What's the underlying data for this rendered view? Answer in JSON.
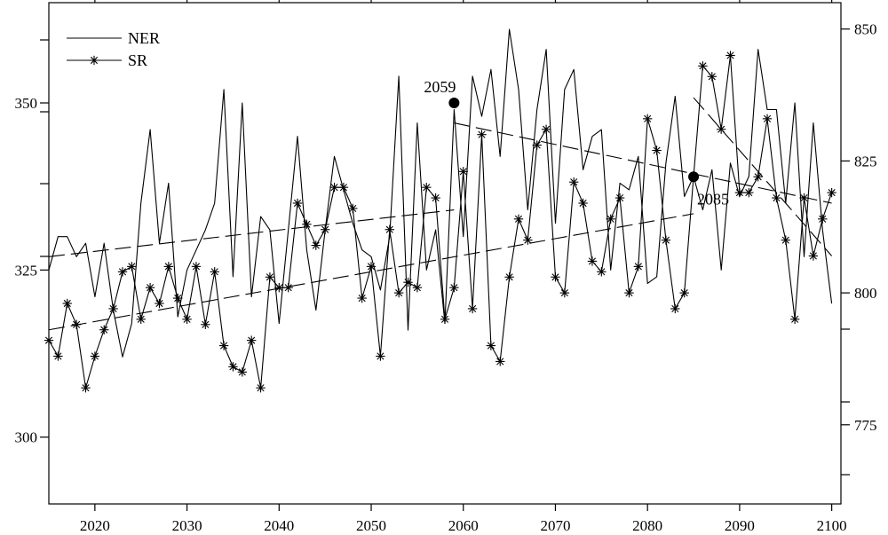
{
  "chart_data": {
    "type": "line",
    "x_range": [
      2015,
      2101
    ],
    "x_ticks": [
      2020,
      2030,
      2040,
      2050,
      2060,
      2070,
      2080,
      2090,
      2100
    ],
    "left_axis": {
      "range": [
        290,
        365
      ],
      "ticks": [
        300,
        325,
        350
      ]
    },
    "right_axis": {
      "range": [
        760,
        855
      ],
      "ticks": [
        775,
        800,
        825,
        850
      ]
    },
    "legend": {
      "placement": "top-left",
      "entries": [
        "NER",
        "SR"
      ]
    },
    "series": [
      {
        "name": "NER",
        "axis": "left",
        "marker": "none",
        "x": [
          2015,
          2016,
          2017,
          2018,
          2019,
          2020,
          2021,
          2022,
          2023,
          2024,
          2025,
          2026,
          2027,
          2028,
          2029,
          2030,
          2031,
          2032,
          2033,
          2034,
          2035,
          2036,
          2037,
          2038,
          2039,
          2040,
          2041,
          2042,
          2043,
          2044,
          2045,
          2046,
          2047,
          2048,
          2049,
          2050,
          2051,
          2052,
          2053,
          2054,
          2055,
          2056,
          2057,
          2058,
          2059,
          2060,
          2061,
          2062,
          2063,
          2064,
          2065,
          2066,
          2067,
          2068,
          2069,
          2070,
          2071,
          2072,
          2073,
          2074,
          2075,
          2076,
          2077,
          2078,
          2079,
          2080,
          2081,
          2082,
          2083,
          2084,
          2085,
          2086,
          2087,
          2088,
          2089,
          2090,
          2091,
          2092,
          2093,
          2094,
          2095,
          2096,
          2097,
          2098,
          2099,
          2100
        ],
        "y": [
          325,
          330,
          330,
          327,
          329,
          321,
          329,
          319,
          312,
          317,
          335,
          346,
          329,
          338,
          318,
          325,
          328,
          331,
          335,
          352,
          324,
          350,
          321,
          333,
          331,
          317,
          331,
          345,
          328,
          319,
          331,
          342,
          337,
          332,
          328,
          327,
          322,
          330,
          354,
          316,
          347,
          325,
          331,
          317,
          349,
          330,
          354,
          348,
          355,
          342,
          361,
          352,
          334,
          349,
          358,
          332,
          352,
          355,
          340,
          345,
          346,
          325,
          338,
          337,
          342,
          323,
          324,
          341,
          351,
          336,
          339,
          334,
          340,
          325,
          341,
          336,
          339,
          358,
          349,
          349,
          335,
          350,
          327,
          347,
          331,
          320
        ]
      },
      {
        "name": "SR",
        "axis": "right",
        "marker": "asterisk",
        "x": [
          2015,
          2016,
          2017,
          2018,
          2019,
          2020,
          2021,
          2022,
          2023,
          2024,
          2025,
          2026,
          2027,
          2028,
          2029,
          2030,
          2031,
          2032,
          2033,
          2034,
          2035,
          2036,
          2037,
          2038,
          2039,
          2040,
          2041,
          2042,
          2043,
          2044,
          2045,
          2046,
          2047,
          2048,
          2049,
          2050,
          2051,
          2052,
          2053,
          2054,
          2055,
          2056,
          2057,
          2058,
          2059,
          2060,
          2061,
          2062,
          2063,
          2064,
          2065,
          2066,
          2067,
          2068,
          2069,
          2070,
          2071,
          2072,
          2073,
          2074,
          2075,
          2076,
          2077,
          2078,
          2079,
          2080,
          2081,
          2082,
          2083,
          2084,
          2085,
          2086,
          2087,
          2088,
          2089,
          2090,
          2091,
          2092,
          2093,
          2094,
          2095,
          2096,
          2097,
          2098,
          2099,
          2100
        ],
        "y": [
          791,
          788,
          798,
          794,
          782,
          788,
          793,
          797,
          804,
          805,
          795,
          801,
          798,
          805,
          799,
          795,
          805,
          794,
          804,
          790,
          786,
          785,
          791,
          782,
          803,
          801,
          801,
          817,
          813,
          809,
          812,
          820,
          820,
          816,
          799,
          805,
          788,
          812,
          800,
          802,
          801,
          820,
          818,
          795,
          801,
          823,
          797,
          830,
          790,
          787,
          803,
          814,
          810,
          828,
          831,
          803,
          800,
          821,
          817,
          806,
          804,
          814,
          818,
          800,
          805,
          833,
          827,
          810,
          797,
          800,
          822,
          843,
          841,
          831,
          845,
          819,
          819,
          822,
          833,
          818,
          810,
          795,
          818,
          807,
          814,
          819
        ]
      }
    ],
    "trend_lines": [
      {
        "series": "NER",
        "axis": "left",
        "x": [
          2015,
          2059
        ],
        "y": [
          327,
          334
        ]
      },
      {
        "series": "NER",
        "axis": "left",
        "x": [
          2059,
          2100
        ],
        "y": [
          347,
          335
        ]
      },
      {
        "series": "SR",
        "axis": "right",
        "x": [
          2015,
          2085
        ],
        "y": [
          793,
          815
        ]
      },
      {
        "series": "SR",
        "axis": "right",
        "x": [
          2085,
          2100
        ],
        "y": [
          837,
          807
        ]
      }
    ],
    "annotations": [
      {
        "label": "2059",
        "x": 2059,
        "y": 350,
        "axis": "left"
      },
      {
        "label": "2085",
        "x": 2085,
        "y": 822,
        "axis": "right"
      }
    ]
  }
}
